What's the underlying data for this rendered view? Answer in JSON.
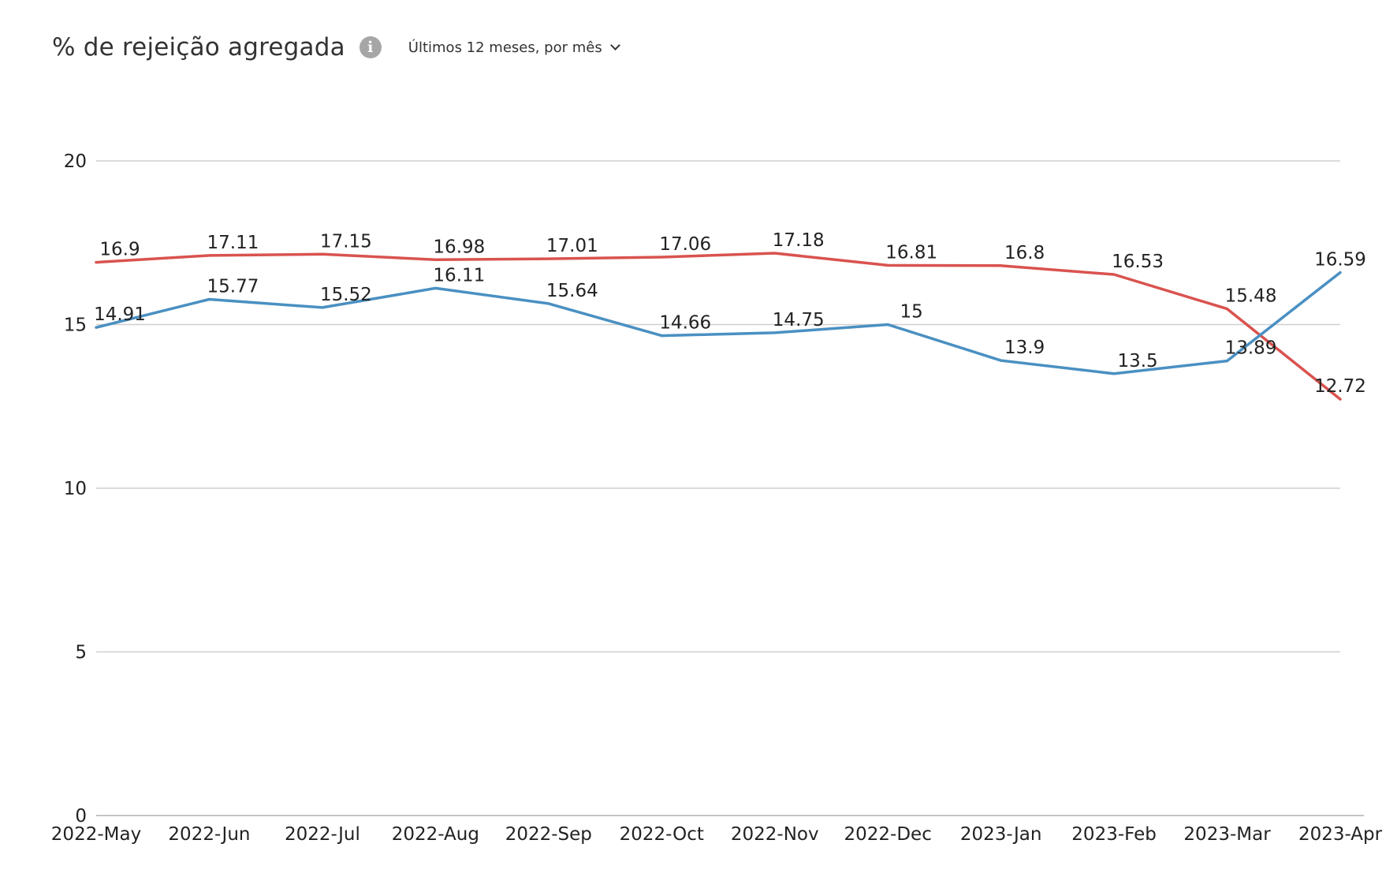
{
  "header": {
    "title": "% de rejeição agregada",
    "info_icon": "info-icon",
    "period_selector": "Últimos 12 meses, por mês",
    "period_icon": "chevron-down-icon"
  },
  "chart_data": {
    "type": "line",
    "title": "% de rejeição agregada",
    "xlabel": "",
    "ylabel": "",
    "ylim": [
      0,
      20
    ],
    "yticks": [
      0,
      5,
      10,
      15,
      20
    ],
    "grid": true,
    "legend": "none",
    "categories": [
      "2022-May",
      "2022-Jun",
      "2022-Jul",
      "2022-Aug",
      "2022-Sep",
      "2022-Oct",
      "2022-Nov",
      "2022-Dec",
      "2023-Jan",
      "2023-Feb",
      "2023-Mar",
      "2023-Apr"
    ],
    "series": [
      {
        "color": "#d9534f",
        "values": [
          16.9,
          17.11,
          17.15,
          16.98,
          17.01,
          17.06,
          17.18,
          16.81,
          16.8,
          16.53,
          15.48,
          12.72
        ]
      },
      {
        "color": "#4a90c2",
        "values": [
          14.91,
          15.77,
          15.52,
          16.11,
          15.64,
          14.66,
          14.75,
          15,
          13.9,
          13.5,
          13.89,
          16.59
        ]
      }
    ]
  }
}
